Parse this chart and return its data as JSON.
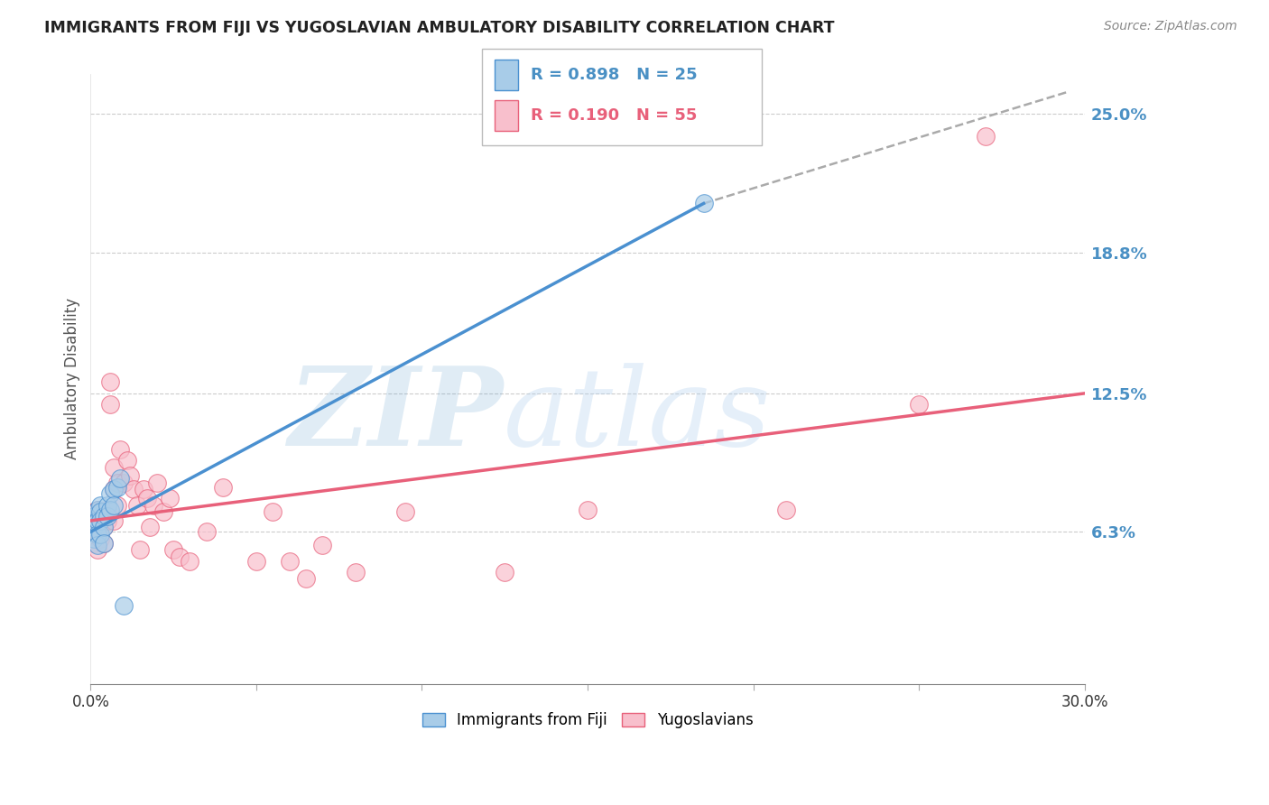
{
  "title": "IMMIGRANTS FROM FIJI VS YUGOSLAVIAN AMBULATORY DISABILITY CORRELATION CHART",
  "source": "Source: ZipAtlas.com",
  "ylabel": "Ambulatory Disability",
  "ytick_labels": [
    "6.3%",
    "12.5%",
    "18.8%",
    "25.0%"
  ],
  "ytick_values": [
    0.063,
    0.125,
    0.188,
    0.25
  ],
  "xmin": 0.0,
  "xmax": 0.3,
  "ymin": -0.005,
  "ymax": 0.268,
  "legend_blue_r": "R = 0.898",
  "legend_blue_n": "N = 25",
  "legend_pink_r": "R = 0.190",
  "legend_pink_n": "N = 55",
  "legend_label_blue": "Immigrants from Fiji",
  "legend_label_pink": "Yugoslavians",
  "blue_color": "#a8cce8",
  "pink_color": "#f8bfcc",
  "blue_line_color": "#4a90d0",
  "pink_line_color": "#e8607a",
  "blue_scatter_x": [
    0.0005,
    0.001,
    0.001,
    0.001,
    0.002,
    0.002,
    0.002,
    0.002,
    0.003,
    0.003,
    0.003,
    0.003,
    0.004,
    0.004,
    0.004,
    0.005,
    0.005,
    0.006,
    0.006,
    0.007,
    0.007,
    0.008,
    0.009,
    0.01,
    0.185
  ],
  "blue_scatter_y": [
    0.068,
    0.07,
    0.065,
    0.06,
    0.073,
    0.068,
    0.062,
    0.057,
    0.075,
    0.072,
    0.068,
    0.062,
    0.07,
    0.065,
    0.058,
    0.075,
    0.07,
    0.08,
    0.073,
    0.082,
    0.075,
    0.083,
    0.087,
    0.03,
    0.21
  ],
  "pink_scatter_x": [
    0.0005,
    0.001,
    0.001,
    0.001,
    0.001,
    0.002,
    0.002,
    0.002,
    0.002,
    0.003,
    0.003,
    0.003,
    0.004,
    0.004,
    0.004,
    0.005,
    0.005,
    0.006,
    0.006,
    0.007,
    0.007,
    0.007,
    0.008,
    0.008,
    0.009,
    0.01,
    0.011,
    0.012,
    0.013,
    0.014,
    0.015,
    0.016,
    0.017,
    0.018,
    0.019,
    0.02,
    0.022,
    0.024,
    0.025,
    0.027,
    0.03,
    0.035,
    0.04,
    0.05,
    0.055,
    0.06,
    0.065,
    0.07,
    0.08,
    0.095,
    0.125,
    0.15,
    0.21,
    0.25,
    0.27
  ],
  "pink_scatter_y": [
    0.068,
    0.072,
    0.068,
    0.063,
    0.058,
    0.073,
    0.068,
    0.063,
    0.055,
    0.072,
    0.068,
    0.06,
    0.072,
    0.065,
    0.058,
    0.073,
    0.068,
    0.13,
    0.12,
    0.092,
    0.082,
    0.068,
    0.085,
    0.075,
    0.1,
    0.085,
    0.095,
    0.088,
    0.082,
    0.075,
    0.055,
    0.082,
    0.078,
    0.065,
    0.075,
    0.085,
    0.072,
    0.078,
    0.055,
    0.052,
    0.05,
    0.063,
    0.083,
    0.05,
    0.072,
    0.05,
    0.042,
    0.057,
    0.045,
    0.072,
    0.045,
    0.073,
    0.073,
    0.12,
    0.24
  ],
  "blue_line_x": [
    0.0,
    0.185
  ],
  "blue_line_y": [
    0.063,
    0.21
  ],
  "dashed_line_x": [
    0.185,
    0.295
  ],
  "dashed_line_y": [
    0.21,
    0.26
  ],
  "pink_line_x": [
    0.0,
    0.3
  ],
  "pink_line_y": [
    0.068,
    0.125
  ]
}
